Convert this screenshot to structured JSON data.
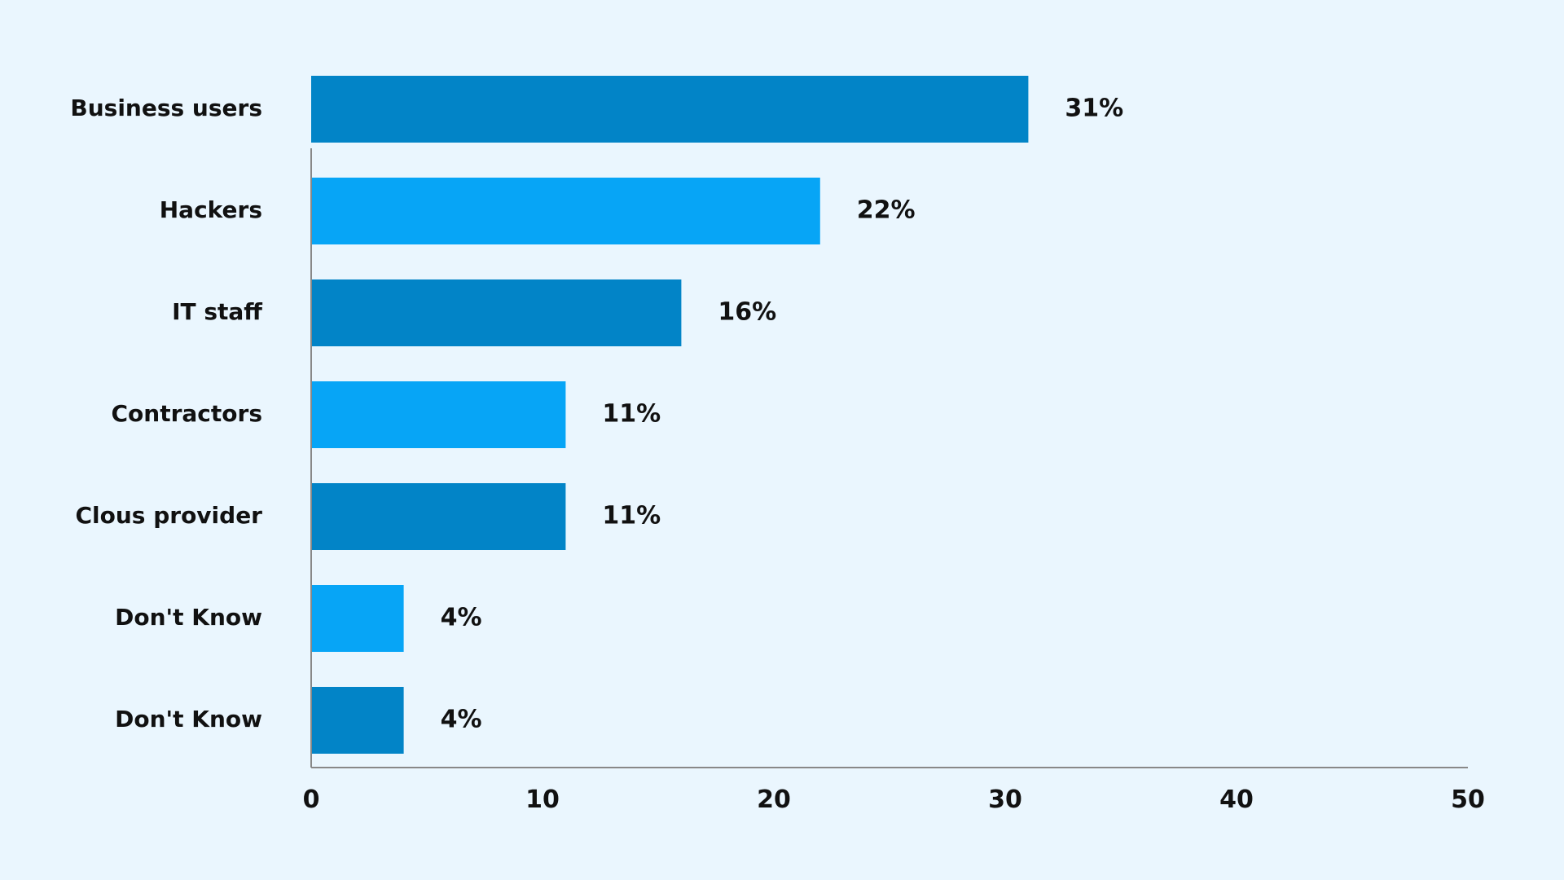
{
  "chart_data": {
    "type": "bar",
    "orientation": "horizontal",
    "categories": [
      "Business users",
      "Hackers",
      "IT staff",
      "Contractors",
      "Clous provider",
      "Don't Know",
      "Don't Know"
    ],
    "values": [
      31,
      22,
      16,
      11,
      11,
      4,
      4
    ],
    "value_labels": [
      "31%",
      "22%",
      "16%",
      "11%",
      "11%",
      "4%",
      "4%"
    ],
    "bar_colors": [
      "#0284c7",
      "#07a5f6",
      "#0284c7",
      "#07a5f6",
      "#0284c7",
      "#07a5f6",
      "#0284c7"
    ],
    "xlim": [
      0,
      50
    ],
    "x_ticks": [
      0,
      10,
      20,
      30,
      40,
      50
    ],
    "x_tick_labels": [
      "0",
      "10",
      "20",
      "30",
      "40",
      "50"
    ],
    "title": "",
    "xlabel": "",
    "ylabel": "",
    "grid": false,
    "legend": "none"
  },
  "colors": {
    "background": "#eaf6fe",
    "axis": "#888888",
    "text": "#111111"
  }
}
